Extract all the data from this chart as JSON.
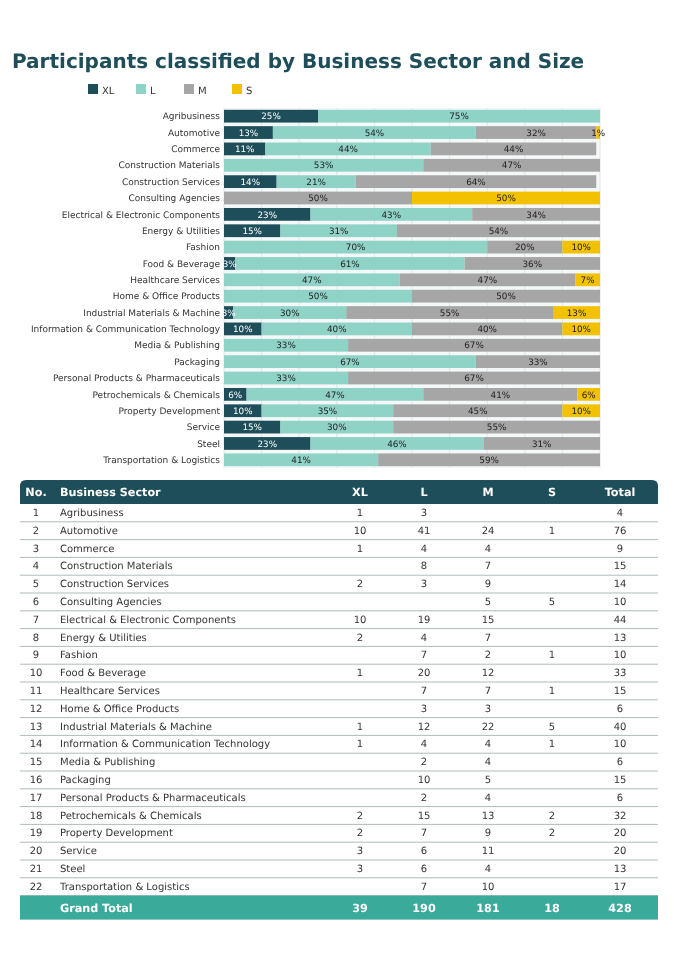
{
  "chart_data": [
    {
      "type": "bar",
      "orientation": "horizontal",
      "stacked": true,
      "title": "Participants classified by Business Sector and Size",
      "legend": "top left",
      "grid": "x",
      "tick_labels": "y",
      "xlim": [
        0,
        100
      ],
      "xticks": [
        {
          "value": 0,
          "label": null
        },
        {
          "value": 10,
          "label": null
        },
        {
          "value": 20,
          "label": null
        },
        {
          "value": 30,
          "label": null
        },
        {
          "value": 40,
          "label": null
        },
        {
          "value": 50,
          "label": null
        },
        {
          "value": 60,
          "label": null
        },
        {
          "value": 70,
          "label": null
        },
        {
          "value": 80,
          "label": null
        },
        {
          "value": 90,
          "label": null
        },
        {
          "value": 100,
          "label": null
        }
      ],
      "categories": [
        "Agribusiness",
        "Automotive",
        "Commerce",
        "Construction Materials",
        "Construction Services",
        "Consulting Agencies",
        "Electrical & Electronic Components",
        "Energy & Utilities",
        "Fashion",
        "Food & Beverage",
        "Healthcare Services",
        "Home & Office Products",
        "Industrial Materials & Machine",
        "Information & Communication Technology",
        "Media & Publishing",
        "Packaging",
        "Personal Products & Pharmaceuticals",
        "Petrochemicals & Chemicals",
        "Property Development",
        "Service",
        "Steel",
        "Transportation & Logistics"
      ],
      "series": [
        {
          "name": "XL",
          "color": "#1d4e5a",
          "values": [
            25,
            13,
            11,
            null,
            14,
            null,
            23,
            15,
            null,
            3,
            null,
            null,
            2.5,
            10,
            null,
            null,
            null,
            6,
            10,
            15,
            23,
            null
          ],
          "value_labels": [
            "25%",
            "13%",
            "11%",
            null,
            "14%",
            null,
            "23%",
            "15%",
            null,
            "3%",
            null,
            null,
            "3%",
            "10%",
            null,
            null,
            null,
            "6%",
            "10%",
            "15%",
            "23%",
            null
          ]
        },
        {
          "name": "L",
          "color": "#8fd3c7",
          "values": [
            75,
            54,
            44,
            53,
            21,
            null,
            43,
            31,
            70,
            61,
            46.7,
            50,
            30,
            40,
            33,
            67,
            33,
            47,
            35,
            30,
            46,
            41
          ],
          "value_labels": [
            "75%",
            "54%",
            "44%",
            "53%",
            "21%",
            null,
            "43%",
            "31%",
            "70%",
            "61%",
            "47%",
            "50%",
            "30%",
            "40%",
            "33%",
            "67%",
            "33%",
            "47%",
            "35%",
            "30%",
            "46%",
            "41%"
          ]
        },
        {
          "name": "M",
          "color": "#a6a6a6",
          "values": [
            null,
            32,
            44,
            47,
            64,
            50,
            34,
            54,
            20,
            36,
            46.7,
            50,
            55,
            40,
            67,
            33,
            67,
            41,
            45,
            55,
            31,
            59
          ],
          "value_labels": [
            null,
            "32%",
            "44%",
            "47%",
            "64%",
            "50%",
            "34%",
            "54%",
            "20%",
            "36%",
            "47%",
            "50%",
            "55%",
            "40%",
            "67%",
            "33%",
            "67%",
            "41%",
            "45%",
            "55%",
            "31%",
            "59%"
          ]
        },
        {
          "name": "S",
          "color": "#f2c200",
          "values": [
            null,
            1,
            null,
            null,
            null,
            50,
            null,
            null,
            10,
            null,
            6.6,
            null,
            12.5,
            10,
            null,
            null,
            null,
            6,
            10,
            null,
            null,
            null
          ],
          "value_labels": [
            null,
            "1%",
            null,
            null,
            null,
            "50%",
            null,
            null,
            "10%",
            null,
            "7%",
            null,
            "13%",
            "10%",
            null,
            null,
            null,
            "6%",
            "10%",
            null,
            null,
            null
          ]
        }
      ]
    },
    {
      "type": "other",
      "ylabel": "Business Sector",
      "data_labels": true,
      "categories": [
        "Agribusiness",
        "Automotive",
        "Commerce",
        "Construction Materials",
        "Construction Services",
        "Consulting Agencies",
        "Electrical & Electronic Components",
        "Energy & Utilities",
        "Fashion",
        "Food & Beverage",
        "Healthcare Services",
        "Home & Office Products",
        "Industrial Materials & Machine",
        "Information & Communication Technology",
        "Media & Publishing",
        "Packaging",
        "Personal Products & Pharmaceuticals",
        "Petrochemicals & Chemicals",
        "Property Development",
        "Service",
        "Steel",
        "Transportation & Logistics",
        "Grand Total"
      ],
      "series": [
        {
          "name": "No.",
          "values": [
            1,
            2,
            3,
            4,
            5,
            6,
            7,
            8,
            9,
            10,
            11,
            12,
            13,
            14,
            15,
            16,
            17,
            18,
            19,
            20,
            21,
            22,
            null
          ]
        },
        {
          "name": "XL",
          "values": [
            1,
            10,
            1,
            null,
            2,
            null,
            10,
            2,
            null,
            1,
            null,
            null,
            1,
            1,
            null,
            null,
            null,
            2,
            2,
            3,
            3,
            null,
            39
          ]
        },
        {
          "name": "L",
          "values": [
            3,
            41,
            4,
            8,
            3,
            null,
            19,
            4,
            7,
            20,
            7,
            3,
            12,
            4,
            2,
            10,
            2,
            15,
            7,
            6,
            6,
            7,
            190
          ]
        },
        {
          "name": "M",
          "values": [
            null,
            24,
            4,
            7,
            9,
            5,
            15,
            7,
            2,
            12,
            7,
            3,
            22,
            4,
            4,
            5,
            4,
            13,
            9,
            11,
            4,
            10,
            181
          ]
        },
        {
          "name": "S",
          "values": [
            null,
            1,
            null,
            null,
            null,
            5,
            null,
            null,
            1,
            null,
            1,
            null,
            5,
            1,
            null,
            null,
            null,
            2,
            2,
            null,
            null,
            null,
            18
          ]
        },
        {
          "name": "Total",
          "values": [
            4,
            76,
            9,
            15,
            14,
            10,
            44,
            13,
            10,
            33,
            15,
            6,
            40,
            10,
            6,
            15,
            6,
            32,
            20,
            20,
            13,
            17,
            428
          ]
        }
      ]
    }
  ]
}
